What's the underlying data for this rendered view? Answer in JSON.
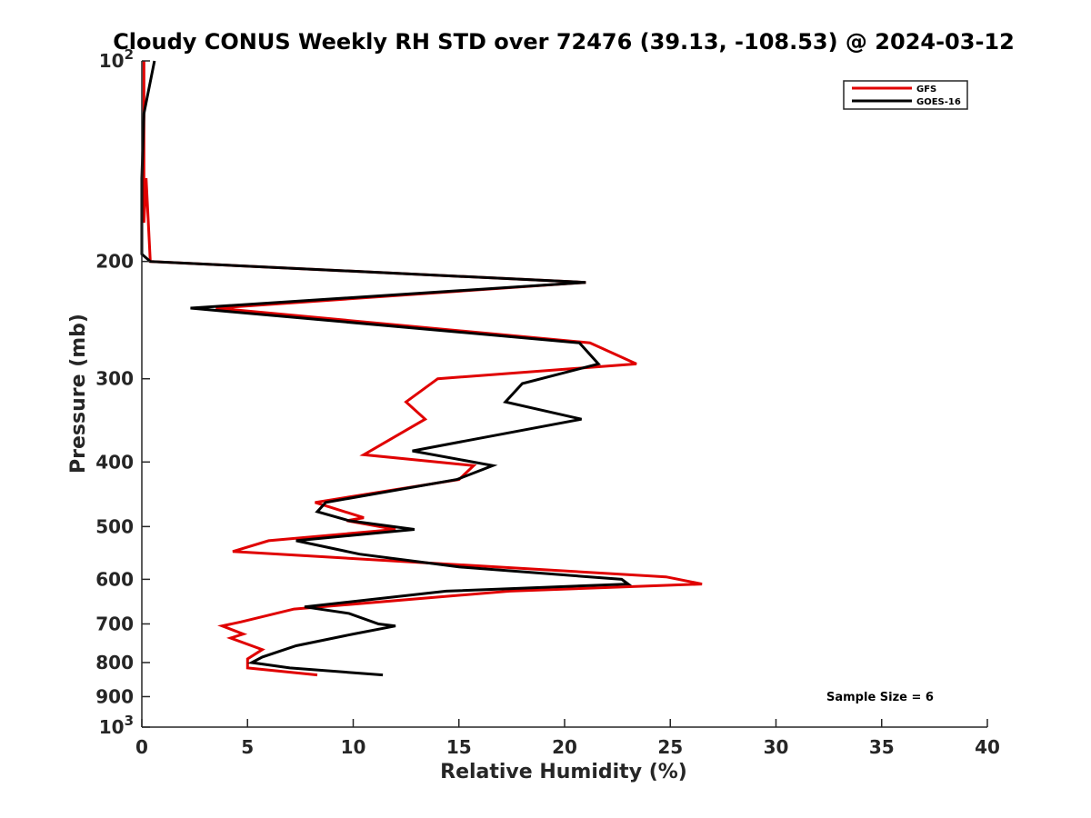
{
  "chart_data": {
    "type": "line",
    "title": "Cloudy CONUS Weekly RH STD over 72476 (39.13, -108.53) @ 2024-03-12",
    "xlabel": "Relative Humidity (%)",
    "ylabel": "Pressure (mb)",
    "xlim": [
      0,
      40
    ],
    "ylim": [
      100,
      1000
    ],
    "y_scale": "log",
    "y_reversed": true,
    "x_ticks": [
      "0",
      "5",
      "10",
      "15",
      "20",
      "25",
      "30",
      "35",
      "40"
    ],
    "y_ticks": [
      {
        "value": 100,
        "base": "10",
        "exp": "2"
      },
      {
        "value": 200,
        "label": "200"
      },
      {
        "value": 300,
        "label": "300"
      },
      {
        "value": 400,
        "label": "400"
      },
      {
        "value": 500,
        "label": "500"
      },
      {
        "value": 600,
        "label": "600"
      },
      {
        "value": 700,
        "label": "700"
      },
      {
        "value": 800,
        "label": "800"
      },
      {
        "value": 900,
        "label": "900"
      },
      {
        "value": 1000,
        "base": "10",
        "exp": "3"
      }
    ],
    "legend_position": "top-right",
    "annotation": "Sample Size = 6",
    "series": [
      {
        "name": "GFS",
        "color": "#e00000",
        "points": [
          [
            0.1,
            100
          ],
          [
            0.1,
            125
          ],
          [
            0.1,
            150
          ],
          [
            0.1,
            175
          ],
          [
            0.2,
            150
          ],
          [
            0.4,
            200
          ],
          [
            21.0,
            215
          ],
          [
            3.5,
            235
          ],
          [
            21.2,
            265
          ],
          [
            23.4,
            285
          ],
          [
            14.0,
            300
          ],
          [
            12.5,
            325
          ],
          [
            13.4,
            345
          ],
          [
            10.5,
            390
          ],
          [
            15.7,
            405
          ],
          [
            15.0,
            425
          ],
          [
            8.2,
            460
          ],
          [
            10.5,
            485
          ],
          [
            9.7,
            490
          ],
          [
            12.0,
            505
          ],
          [
            6.0,
            525
          ],
          [
            4.3,
            545
          ],
          [
            24.8,
            595
          ],
          [
            26.5,
            610
          ],
          [
            17.4,
            625
          ],
          [
            7.2,
            665
          ],
          [
            4.7,
            695
          ],
          [
            3.8,
            705
          ],
          [
            4.8,
            725
          ],
          [
            4.2,
            735
          ],
          [
            5.7,
            765
          ],
          [
            5.0,
            790
          ],
          [
            5.0,
            815
          ],
          [
            8.3,
            835
          ]
        ]
      },
      {
        "name": "GOES-16",
        "color": "#000000",
        "points": [
          [
            0.6,
            100
          ],
          [
            0.1,
            120
          ],
          [
            0.0,
            150
          ],
          [
            0.0,
            175
          ],
          [
            0.0,
            195
          ],
          [
            0.4,
            200
          ],
          [
            21.0,
            215
          ],
          [
            2.3,
            235
          ],
          [
            20.7,
            265
          ],
          [
            21.6,
            285
          ],
          [
            18.0,
            305
          ],
          [
            17.2,
            325
          ],
          [
            20.8,
            345
          ],
          [
            12.8,
            385
          ],
          [
            16.6,
            405
          ],
          [
            14.9,
            425
          ],
          [
            8.7,
            460
          ],
          [
            8.3,
            475
          ],
          [
            9.8,
            490
          ],
          [
            12.9,
            505
          ],
          [
            7.3,
            525
          ],
          [
            10.3,
            550
          ],
          [
            15.0,
            575
          ],
          [
            22.7,
            600
          ],
          [
            23.0,
            610
          ],
          [
            14.4,
            625
          ],
          [
            7.7,
            660
          ],
          [
            9.8,
            675
          ],
          [
            11.2,
            700
          ],
          [
            12.0,
            705
          ],
          [
            10.0,
            725
          ],
          [
            7.3,
            755
          ],
          [
            5.7,
            785
          ],
          [
            5.2,
            800
          ],
          [
            7.0,
            815
          ],
          [
            11.4,
            835
          ]
        ]
      }
    ]
  }
}
